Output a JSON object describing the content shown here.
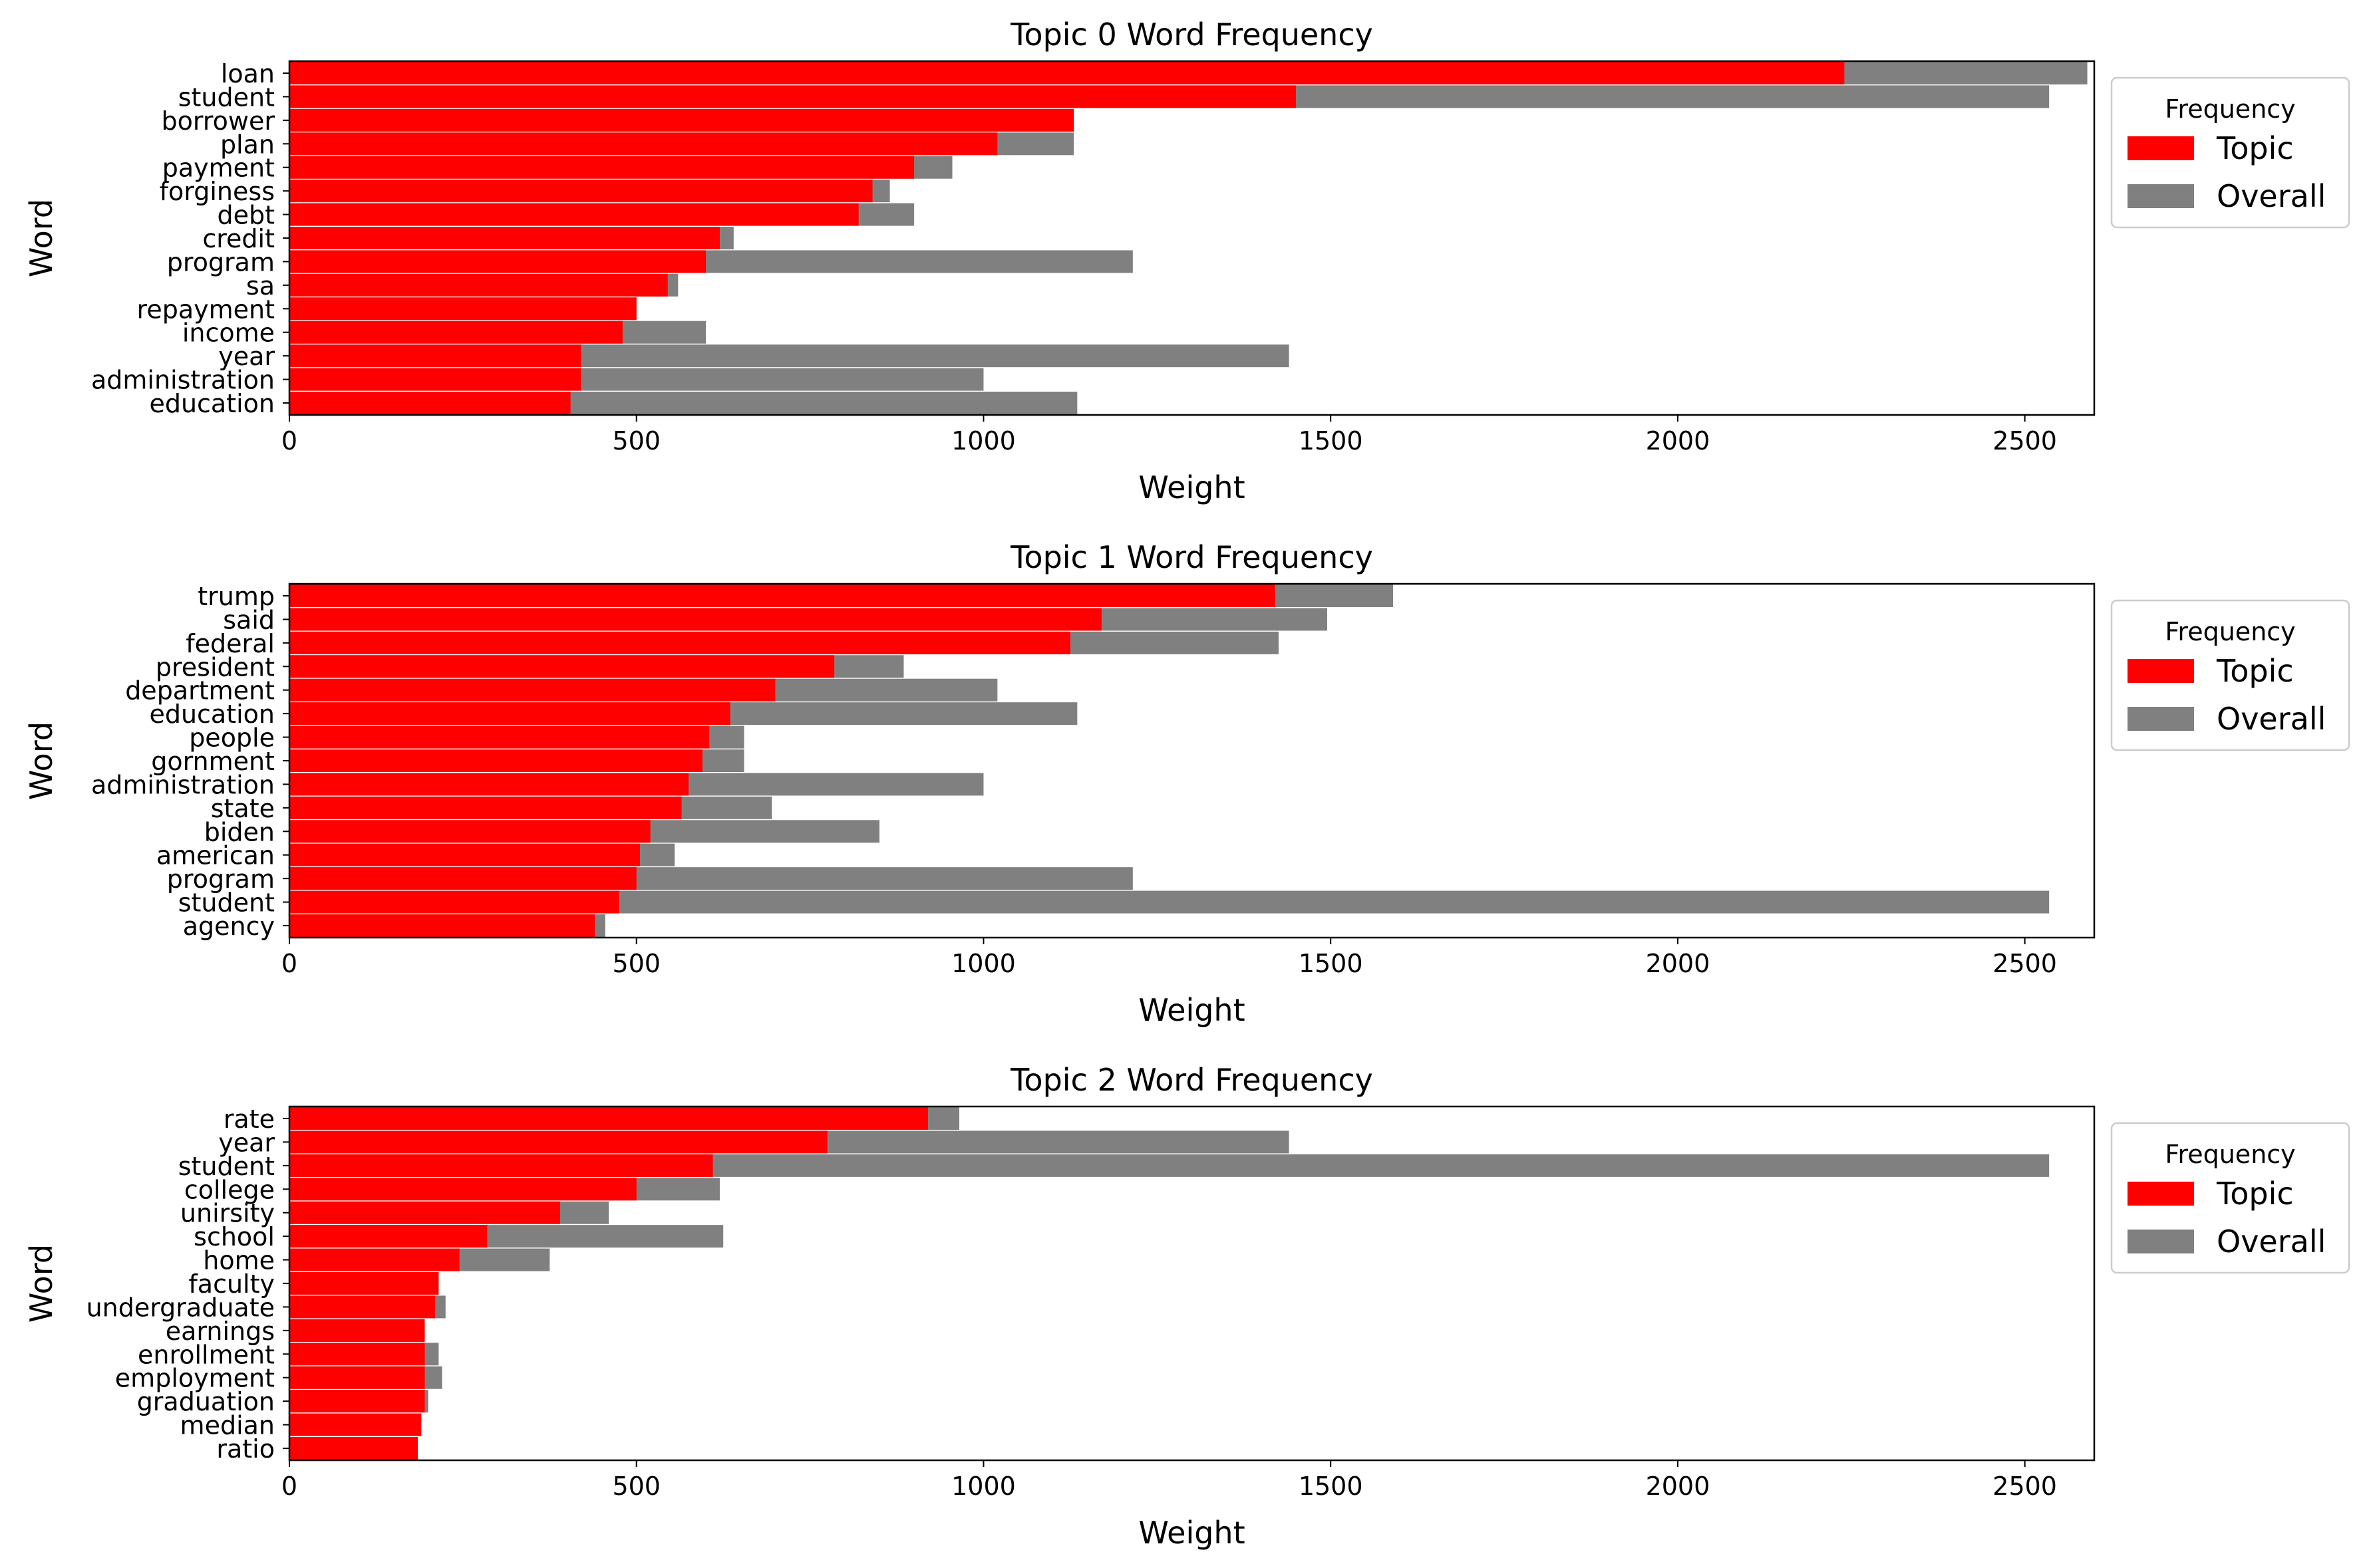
{
  "colors": {
    "topic": "#ff0000",
    "overall": "#808080",
    "axes": "#000000",
    "background": "#ffffff"
  },
  "chart_data": [
    {
      "type": "bar",
      "orientation": "horizontal",
      "title": "Topic 0 Word Frequency",
      "xlabel": "Weight",
      "ylabel": "Word",
      "xlim": [
        0,
        2600
      ],
      "xticks": [
        0,
        500,
        1000,
        1500,
        2000,
        2500
      ],
      "grid": false,
      "legend": {
        "title": "Frequency",
        "entries": [
          "Topic",
          "Overall"
        ],
        "placement": "outside-right-top"
      },
      "categories": [
        "loan",
        "student",
        "borrower",
        "plan",
        "payment",
        "forginess",
        "debt",
        "credit",
        "program",
        "sa",
        "repayment",
        "income",
        "year",
        "administration",
        "education"
      ],
      "series": [
        {
          "name": "Topic",
          "values": [
            2240,
            1450,
            1130,
            1020,
            900,
            840,
            820,
            620,
            600,
            545,
            500,
            480,
            420,
            420,
            405
          ]
        },
        {
          "name": "Overall",
          "values": [
            2590,
            2535,
            1130,
            1130,
            955,
            865,
            900,
            640,
            1215,
            560,
            500,
            600,
            1440,
            1000,
            1135
          ]
        }
      ]
    },
    {
      "type": "bar",
      "orientation": "horizontal",
      "title": "Topic 1 Word Frequency",
      "xlabel": "Weight",
      "ylabel": "Word",
      "xlim": [
        0,
        2600
      ],
      "xticks": [
        0,
        500,
        1000,
        1500,
        2000,
        2500
      ],
      "grid": false,
      "legend": {
        "title": "Frequency",
        "entries": [
          "Topic",
          "Overall"
        ],
        "placement": "outside-right-top"
      },
      "categories": [
        "trump",
        "said",
        "federal",
        "president",
        "department",
        "education",
        "people",
        "gornment",
        "administration",
        "state",
        "biden",
        "american",
        "program",
        "student",
        "agency"
      ],
      "series": [
        {
          "name": "Topic",
          "values": [
            1420,
            1170,
            1125,
            785,
            700,
            635,
            605,
            595,
            575,
            565,
            520,
            505,
            500,
            475,
            440
          ]
        },
        {
          "name": "Overall",
          "values": [
            1590,
            1495,
            1425,
            885,
            1020,
            1135,
            655,
            655,
            1000,
            695,
            850,
            555,
            1215,
            2535,
            455
          ]
        }
      ]
    },
    {
      "type": "bar",
      "orientation": "horizontal",
      "title": "Topic 2 Word Frequency",
      "xlabel": "Weight",
      "ylabel": "Word",
      "xlim": [
        0,
        2600
      ],
      "xticks": [
        0,
        500,
        1000,
        1500,
        2000,
        2500
      ],
      "grid": false,
      "legend": {
        "title": "Frequency",
        "entries": [
          "Topic",
          "Overall"
        ],
        "placement": "outside-right-top"
      },
      "categories": [
        "rate",
        "year",
        "student",
        "college",
        "unirsity",
        "school",
        "home",
        "faculty",
        "undergraduate",
        "earnings",
        "enrollment",
        "employment",
        "graduation",
        "median",
        "ratio"
      ],
      "series": [
        {
          "name": "Topic",
          "values": [
            920,
            775,
            610,
            500,
            390,
            285,
            245,
            215,
            210,
            195,
            195,
            195,
            195,
            190,
            185
          ]
        },
        {
          "name": "Overall",
          "values": [
            965,
            1440,
            2535,
            620,
            460,
            625,
            375,
            215,
            225,
            195,
            215,
            220,
            200,
            190,
            185
          ]
        }
      ]
    }
  ]
}
